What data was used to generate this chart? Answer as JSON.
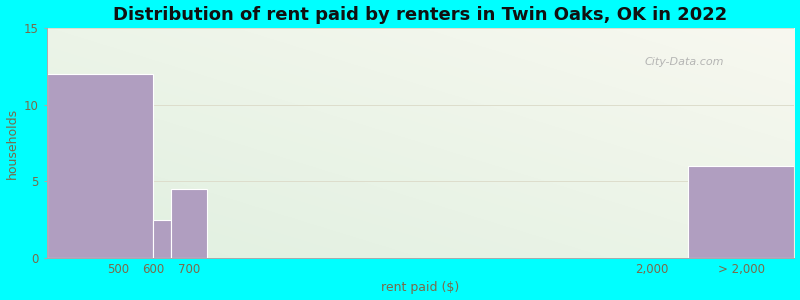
{
  "title": "Distribution of rent paid by renters in Twin Oaks, OK in 2022",
  "xlabel": "rent paid ($)",
  "ylabel": "households",
  "background_color": "#00FFFF",
  "bar_color": "#b09ec0",
  "bar_edge_color": "#ffffff",
  "title_fontsize": 13,
  "axis_label_fontsize": 9,
  "tick_label_color": "#7a6a4a",
  "ylim": [
    0,
    15
  ],
  "yticks": [
    0,
    5,
    10,
    15
  ],
  "grid_color": "#ddddcc",
  "watermark_text": "City-Data.com",
  "xlim": [
    300,
    2400
  ],
  "bars": [
    {
      "x_left": 300,
      "x_right": 600,
      "height": 12
    },
    {
      "x_left": 600,
      "x_right": 650,
      "height": 2.5
    },
    {
      "x_left": 650,
      "x_right": 750,
      "height": 4.5
    },
    {
      "x_left": 2100,
      "x_right": 2400,
      "height": 6
    }
  ],
  "xtick_positions": [
    500,
    600,
    700,
    2000,
    2250
  ],
  "xtick_labels": [
    "500",
    "600",
    "700",
    "2,000",
    "> 2,000"
  ]
}
